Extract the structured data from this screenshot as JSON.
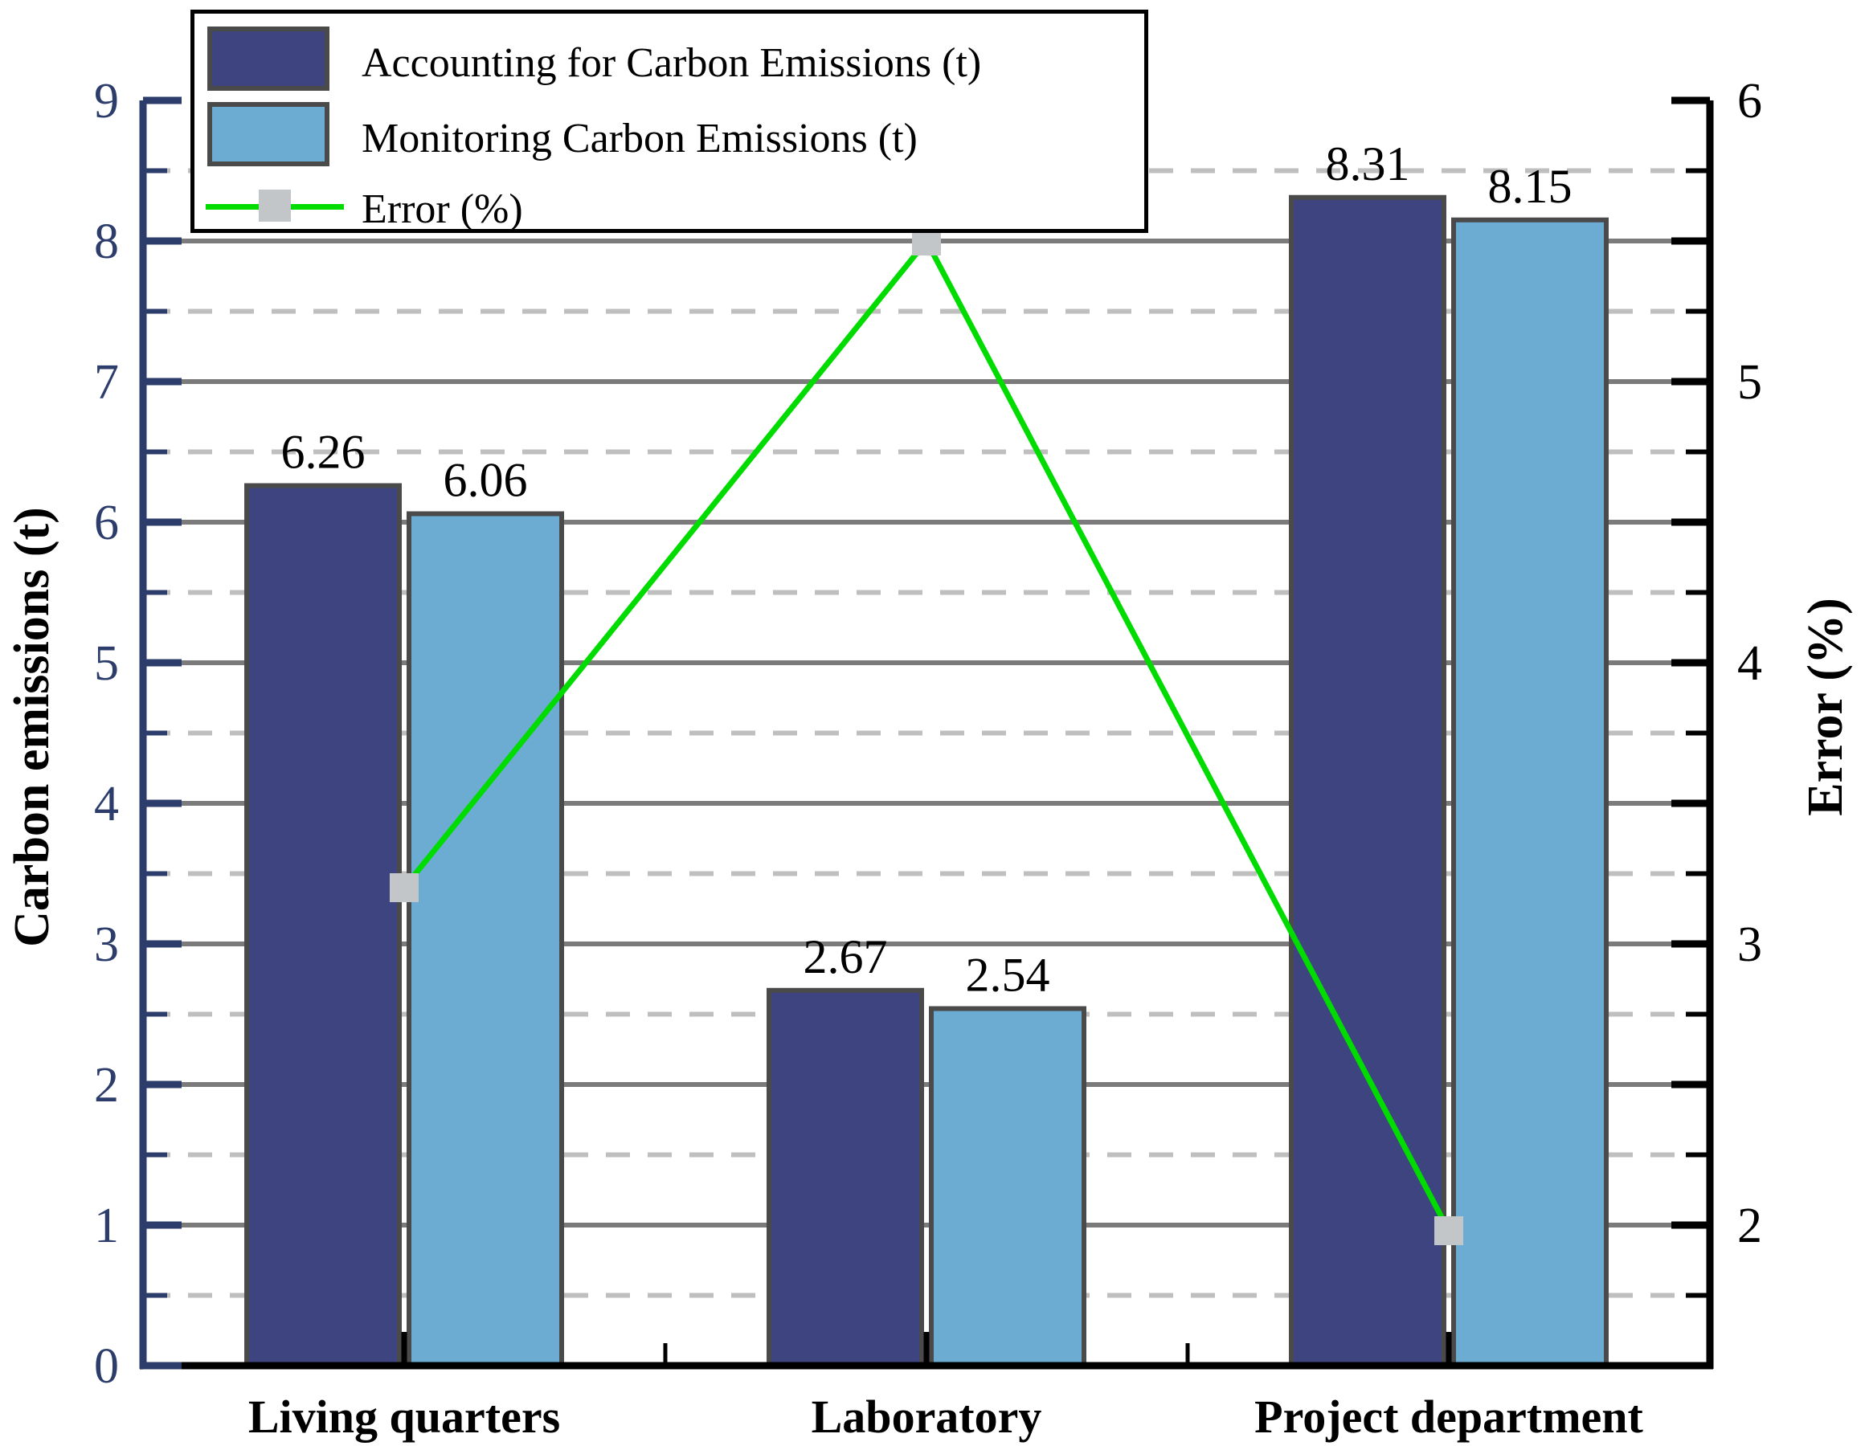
{
  "chart_data": {
    "type": "bar+line combo",
    "categories": [
      "Living quarters",
      "Laboratory",
      "Project department"
    ],
    "series": [
      {
        "name": "Accounting for Carbon Emissions (t)",
        "type": "bar",
        "axis": "left",
        "color": "#3E4480",
        "border_color": "#4A4A4A",
        "values": [
          6.26,
          2.67,
          8.31
        ],
        "data_labels": [
          "6.26",
          "2.67",
          "8.31"
        ]
      },
      {
        "name": "Monitoring Carbon Emissions (t)",
        "type": "bar",
        "axis": "left",
        "color": "#6CACD3",
        "border_color": "#4A4A4A",
        "values": [
          6.06,
          2.54,
          8.15
        ],
        "data_labels": [
          "6.06",
          "2.54",
          "8.15"
        ]
      },
      {
        "name": "Error (%)",
        "type": "line",
        "axis": "right",
        "color": "#00DC00",
        "marker": "square",
        "marker_color": "#C2C6C8",
        "values": [
          3.2,
          5.5,
          1.98
        ]
      }
    ],
    "left_axis": {
      "title": "Carbon emissions (t)",
      "min": 0,
      "max": 9,
      "major_step": 1,
      "minor_step": 0.5,
      "tick_labels": [
        "0",
        "1",
        "2",
        "3",
        "4",
        "5",
        "6",
        "7",
        "8",
        "9"
      ],
      "color": "#2C3C6B"
    },
    "right_axis": {
      "title": "Error (%)",
      "min": 1.5,
      "max": 6,
      "major_step": 0.5,
      "minor_step": 0.25,
      "labeled_values": [
        2,
        3,
        4,
        5,
        6
      ],
      "tick_labels": [
        "2",
        "3",
        "4",
        "5",
        "6"
      ],
      "color": "#000000"
    },
    "grid": {
      "major_on": true,
      "major_color": "#7B7B7B",
      "minor_on": true,
      "minor_color": "#BFBFBF",
      "minor_style": "dashed"
    },
    "legend": {
      "position": "top-left",
      "entries": [
        "Accounting for Carbon Emissions (t)",
        "Monitoring Carbon Emissions (t)",
        "Error (%)"
      ]
    }
  }
}
